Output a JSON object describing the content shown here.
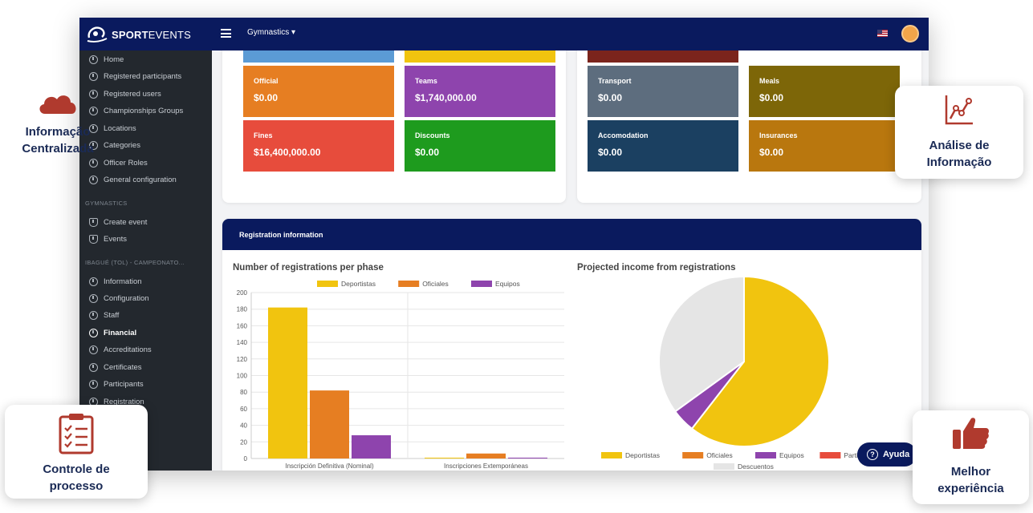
{
  "app": {
    "logo": {
      "bold": "SPORT",
      "light": "EVENTS"
    },
    "module_select": "Gymnastics ▾",
    "colors": {
      "navy": "#0a1a5e",
      "sidebar": "#23282e"
    }
  },
  "sidebar": {
    "items": [
      {
        "label": "Home"
      },
      {
        "label": "Registered participants"
      },
      {
        "label": "Registered users"
      },
      {
        "label": "Championships Groups"
      },
      {
        "label": "Locations"
      },
      {
        "label": "Categories"
      },
      {
        "label": "Officer Roles"
      },
      {
        "label": "General configuration"
      }
    ],
    "section1": "GYMNASTICS",
    "section1_items": [
      {
        "label": "Create event"
      },
      {
        "label": "Events"
      }
    ],
    "section2": "IBAGUÉ (TOL) - CAMPEONATO...",
    "section2_items": [
      {
        "label": "Information"
      },
      {
        "label": "Configuration"
      },
      {
        "label": "Staff"
      },
      {
        "label": "Financial",
        "active": true
      },
      {
        "label": "Accreditations"
      },
      {
        "label": "Certificates"
      },
      {
        "label": "Participants"
      },
      {
        "label": "Registration"
      }
    ]
  },
  "income_tiles": [
    {
      "label": "Official",
      "value": "$0.00",
      "color": "#e67e22"
    },
    {
      "label": "Teams",
      "value": "$1,740,000.00",
      "color": "#8e44ad"
    },
    {
      "label": "Fines",
      "value": "$16,400,000.00",
      "color": "#e74c3c"
    },
    {
      "label": "Discounts",
      "value": "$0.00",
      "color": "#1e9b1e"
    }
  ],
  "expense_tiles": [
    {
      "label": "Transport",
      "value": "$0.00",
      "color": "#5d6d7e"
    },
    {
      "label": "Meals",
      "value": "$0.00",
      "color": "#7d6608"
    },
    {
      "label": "Accomodation",
      "value": "$0.00",
      "color": "#1b4061"
    },
    {
      "label": "Insurances",
      "value": "$0.00",
      "color": "#b9770e"
    }
  ],
  "registration": {
    "header": "Registration information",
    "bar_title": "Number of registrations per phase",
    "pie_title": "Projected income from registrations"
  },
  "chart_data": [
    {
      "type": "bar",
      "title": "Number of registrations per phase",
      "categories": [
        "Inscripción Definitiva (Nominal)",
        "Inscripciones Extemporáneas"
      ],
      "series": [
        {
          "name": "Deportistas",
          "values": [
            182,
            1
          ],
          "color": "#f1c40f"
        },
        {
          "name": "Oficiales",
          "values": [
            82,
            6
          ],
          "color": "#e67e22"
        },
        {
          "name": "Equipos",
          "values": [
            28,
            1
          ],
          "color": "#8e44ad"
        }
      ],
      "ylim": [
        0,
        200
      ],
      "yticks": [
        0,
        20,
        40,
        60,
        80,
        100,
        120,
        140,
        160,
        180,
        200
      ],
      "grid": true,
      "legend": "top"
    },
    {
      "type": "pie",
      "title": "Projected income from registrations",
      "slices": [
        {
          "name": "Deportistas",
          "value": 60.5,
          "color": "#f1c40f"
        },
        {
          "name": "Oficiales",
          "value": 0,
          "color": "#e67e22"
        },
        {
          "name": "Equipos",
          "value": 4.5,
          "color": "#8e44ad"
        },
        {
          "name": "Participantes",
          "value": 0,
          "color": "#e74c3c"
        },
        {
          "name": "Descuentos",
          "value": 35,
          "color": "#e5e5e5"
        }
      ],
      "legend": "bottom"
    }
  ],
  "callouts": {
    "left_top": "Informação Centralizada",
    "right_top": "Análise de Informação",
    "left_bottom": "Controle de processo",
    "right_bottom": "Melhor experiência"
  },
  "help_button": "Ayuda"
}
